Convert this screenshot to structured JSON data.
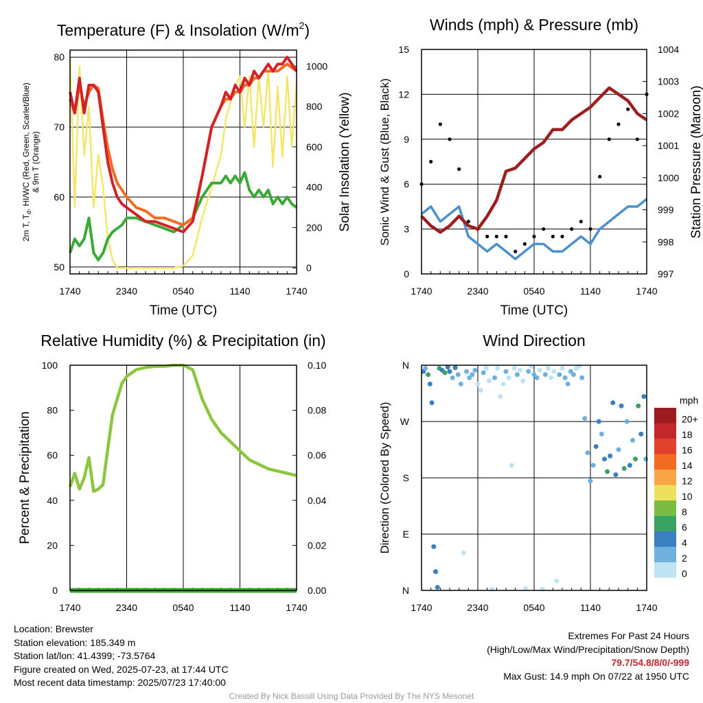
{
  "chart_data": [
    {
      "id": "temperature",
      "type": "line",
      "title": "Temperature (F) & Insolation (W/m²)",
      "title_main": "Temperature (F) & Insolation (W/m",
      "title_sup": "2",
      "title_end": ")",
      "xlabel": "Time (UTC)",
      "ylabel_lines": [
        "2m T, T",
        "d",
        ", HI/WC (Red, Green, Scarlet/Blue)",
        "& 9m T (Orange)"
      ],
      "ylabel_right": "Solar Insolation (Yellow)",
      "x_ticks": [
        "1740",
        "2340",
        "0540",
        "1140",
        "1740"
      ],
      "y_ticks": [
        50,
        60,
        70,
        80
      ],
      "ylim": [
        49,
        81
      ],
      "y2_ticks": [
        0,
        200,
        400,
        600,
        800,
        1000
      ],
      "y2lim": [
        -30,
        1080
      ],
      "x_hours_since_1740": [
        0,
        0.5,
        1,
        1.5,
        2,
        2.5,
        3,
        3.5,
        4,
        4.5,
        5,
        5.5,
        6,
        7,
        8,
        9,
        10,
        11,
        12,
        13,
        14,
        15,
        16,
        16.5,
        17,
        17.5,
        18,
        18.5,
        19,
        19.5,
        20,
        20.5,
        21,
        21.5,
        22,
        22.5,
        23,
        23.5,
        24
      ],
      "series": [
        {
          "name": "2m T",
          "color": "#d42027",
          "axis": "left",
          "values": [
            75,
            72,
            77,
            72,
            76,
            76,
            75,
            70,
            65,
            62,
            60,
            59,
            58.5,
            57.5,
            56.5,
            56.5,
            56,
            55.5,
            55,
            56.5,
            63,
            70,
            73,
            75,
            74,
            76,
            75,
            77,
            76,
            78,
            77,
            78,
            79,
            78,
            79,
            79,
            80,
            79,
            78
          ]
        },
        {
          "name": "9m T",
          "color": "#f26b21",
          "axis": "left",
          "values": [
            74,
            72,
            76,
            73,
            75,
            76,
            75.5,
            71,
            67,
            64,
            62,
            61,
            60,
            58.5,
            58,
            57,
            57,
            56.5,
            56,
            57,
            63,
            70,
            73,
            74,
            74,
            75,
            75,
            76,
            76,
            77,
            77,
            78,
            78,
            78,
            78,
            78.5,
            79,
            78.5,
            78
          ]
        },
        {
          "name": "Td",
          "color": "#3aaa35",
          "axis": "left",
          "values": [
            52,
            54,
            53,
            54,
            57,
            52,
            51,
            52,
            54,
            55,
            55.5,
            56,
            57,
            57,
            56.5,
            56,
            55.5,
            55,
            56,
            57,
            60,
            62,
            62,
            63,
            62,
            63,
            62,
            63.5,
            61,
            60,
            61,
            60,
            61,
            59,
            60,
            59,
            60,
            59,
            58.5
          ]
        },
        {
          "name": "Insolation",
          "color": "#f4e66b",
          "axis": "right",
          "values": [
            1040,
            300,
            1000,
            560,
            800,
            300,
            560,
            400,
            150,
            40,
            0,
            0,
            0,
            0,
            0,
            0,
            0,
            0,
            10,
            60,
            250,
            400,
            560,
            740,
            820,
            900,
            950,
            700,
            950,
            600,
            950,
            700,
            980,
            500,
            900,
            550,
            950,
            600,
            920
          ]
        }
      ]
    },
    {
      "id": "winds",
      "type": "line",
      "title": "Winds (mph) & Pressure (mb)",
      "xlabel": "Time (UTC)",
      "ylabel": "Sonic Wind & Gust (Blue, Black)",
      "ylabel_right": "Station Pressure (Maroon)",
      "x_ticks": [
        "1740",
        "2340",
        "0540",
        "1140",
        "1740"
      ],
      "y_ticks": [
        0,
        3,
        6,
        9,
        12,
        15
      ],
      "ylim": [
        0,
        15
      ],
      "y2_ticks": [
        997,
        998,
        999,
        1000,
        1001,
        1002,
        1003,
        1004
      ],
      "y2lim": [
        997,
        1004
      ],
      "x_hours_since_1740": [
        0,
        1,
        2,
        3,
        4,
        5,
        6,
        7,
        8,
        9,
        10,
        11,
        12,
        13,
        14,
        15,
        16,
        17,
        18,
        19,
        20,
        21,
        22,
        23,
        24
      ],
      "series": [
        {
          "name": "Sonic Wind",
          "color": "#4a90d0",
          "axis": "left",
          "values": [
            4,
            4.5,
            3.5,
            4,
            4.5,
            2.5,
            2,
            1.5,
            2,
            1.5,
            1,
            1.5,
            2,
            2,
            1.5,
            1.5,
            2,
            2.5,
            2,
            3,
            3.5,
            4,
            4.5,
            4.5,
            5
          ]
        },
        {
          "name": "Gust",
          "color": "#000000",
          "axis": "left",
          "style": "dots",
          "values": [
            6,
            7.5,
            10,
            9,
            7,
            3.5,
            3,
            2.5,
            2.5,
            2.5,
            1.5,
            2,
            2.5,
            3,
            2.5,
            2.5,
            3,
            3.5,
            3,
            6.5,
            9,
            10,
            11,
            9,
            12
          ]
        },
        {
          "name": "Station Pressure",
          "color": "#9c1e1e",
          "axis": "right",
          "values": [
            998.8,
            998.5,
            998.3,
            998.5,
            998.8,
            998.5,
            998.4,
            998.8,
            999.3,
            1000.2,
            1000.3,
            1000.6,
            1000.9,
            1001.1,
            1001.5,
            1001.5,
            1001.8,
            1002.0,
            1002.2,
            1002.5,
            1002.8,
            1002.6,
            1002.4,
            1002.0,
            1001.8
          ]
        }
      ]
    },
    {
      "id": "rh",
      "type": "line",
      "title": "Relative Humidity (%) & Precipitation (in)",
      "ylabel": "Percent & Precipitation",
      "x_ticks": [
        "1740",
        "2340",
        "0540",
        "1140",
        "1740"
      ],
      "y_ticks": [
        0,
        20,
        40,
        60,
        80,
        100
      ],
      "ylim": [
        0,
        100
      ],
      "y2_ticks": [
        "0.00",
        "0.02",
        "0.04",
        "0.06",
        "0.08",
        "0.10"
      ],
      "y2lim": [
        0,
        0.1
      ],
      "x_hours_since_1740": [
        0,
        0.5,
        1,
        1.5,
        2,
        2.5,
        3,
        3.5,
        4,
        4.5,
        5,
        5.5,
        6,
        7,
        8,
        9,
        10,
        11,
        12,
        13,
        14,
        15,
        16,
        17,
        18,
        19,
        20,
        21,
        22,
        23,
        24
      ],
      "series": [
        {
          "name": "Relative Humidity",
          "color": "#8cc63f",
          "axis": "left",
          "values": [
            46,
            52,
            45,
            50,
            59,
            44,
            45,
            47,
            63,
            78,
            85,
            92,
            95,
            98,
            99,
            99.5,
            99.5,
            100,
            100,
            98,
            85,
            76,
            70,
            66,
            62,
            58,
            56,
            54,
            53,
            52,
            51
          ]
        },
        {
          "name": "Precipitation",
          "color": "#3aaa35",
          "axis": "right",
          "values": [
            0,
            0,
            0,
            0,
            0,
            0,
            0,
            0,
            0,
            0,
            0,
            0,
            0,
            0,
            0,
            0,
            0,
            0,
            0,
            0,
            0,
            0,
            0,
            0,
            0,
            0,
            0,
            0,
            0,
            0,
            0
          ]
        }
      ]
    },
    {
      "id": "wind-direction",
      "type": "scatter",
      "title": "Wind Direction",
      "ylabel": "Direction (Colored By Speed)",
      "x_ticks": [
        "1740",
        "2340",
        "0540",
        "1140",
        "1740"
      ],
      "y_ticks": [
        "N",
        "E",
        "S",
        "W",
        "N"
      ],
      "ylim": [
        0,
        360
      ],
      "legend": {
        "unit": "mph",
        "labels": [
          "20+",
          "18",
          "16",
          "14",
          "12",
          "10",
          "8",
          "6",
          "4",
          "2",
          "0"
        ],
        "colors": [
          "#9b1b1e",
          "#c1272d",
          "#e0422d",
          "#f26b21",
          "#f7a545",
          "#ede05a",
          "#7bbd44",
          "#3aa362",
          "#3c7fc0",
          "#6fb0e0",
          "#bde3f5"
        ],
        "placement": "right"
      },
      "points": [
        {
          "h": 0.2,
          "dir": 350,
          "spd": 4
        },
        {
          "h": 0.4,
          "dir": 355,
          "spd": 3
        },
        {
          "h": 0.7,
          "dir": 345,
          "spd": 6
        },
        {
          "h": 0.9,
          "dir": 330,
          "spd": 4
        },
        {
          "h": 1.1,
          "dir": 300,
          "spd": 4
        },
        {
          "h": 1.3,
          "dir": 70,
          "spd": 4
        },
        {
          "h": 1.5,
          "dir": 30,
          "spd": 4
        },
        {
          "h": 1.7,
          "dir": 5,
          "spd": 4
        },
        {
          "h": 1.9,
          "dir": 355,
          "spd": 6
        },
        {
          "h": 2.2,
          "dir": 352,
          "spd": 4
        },
        {
          "h": 2.5,
          "dir": 348,
          "spd": 6
        },
        {
          "h": 2.8,
          "dir": 357,
          "spd": 5
        },
        {
          "h": 3.0,
          "dir": 350,
          "spd": 4
        },
        {
          "h": 3.3,
          "dir": 340,
          "spd": 3
        },
        {
          "h": 3.6,
          "dir": 356,
          "spd": 4
        },
        {
          "h": 3.9,
          "dir": 345,
          "spd": 2
        },
        {
          "h": 4.2,
          "dir": 330,
          "spd": 2
        },
        {
          "h": 4.5,
          "dir": 60,
          "spd": 1
        },
        {
          "h": 4.8,
          "dir": 350,
          "spd": 3
        },
        {
          "h": 5.1,
          "dir": 340,
          "spd": 3
        },
        {
          "h": 5.4,
          "dir": 345,
          "spd": 2
        },
        {
          "h": 5.7,
          "dir": 352,
          "spd": 2
        },
        {
          "h": 6.0,
          "dir": 330,
          "spd": 1
        },
        {
          "h": 6.3,
          "dir": 320,
          "spd": 1
        },
        {
          "h": 6.6,
          "dir": 348,
          "spd": 2
        },
        {
          "h": 6.9,
          "dir": 355,
          "spd": 1
        },
        {
          "h": 7.2,
          "dir": 335,
          "spd": 1
        },
        {
          "h": 7.5,
          "dir": 2,
          "spd": 1
        },
        {
          "h": 7.8,
          "dir": 340,
          "spd": 2
        },
        {
          "h": 8.1,
          "dir": 355,
          "spd": 1
        },
        {
          "h": 8.4,
          "dir": 310,
          "spd": 1
        },
        {
          "h": 8.7,
          "dir": 330,
          "spd": 1
        },
        {
          "h": 9.0,
          "dir": 350,
          "spd": 2
        },
        {
          "h": 9.3,
          "dir": 340,
          "spd": 1
        },
        {
          "h": 9.6,
          "dir": 200,
          "spd": 1
        },
        {
          "h": 9.9,
          "dir": 355,
          "spd": 1
        },
        {
          "h": 10.2,
          "dir": 345,
          "spd": 2
        },
        {
          "h": 10.5,
          "dir": 352,
          "spd": 1
        },
        {
          "h": 10.8,
          "dir": 335,
          "spd": 1
        },
        {
          "h": 11.1,
          "dir": 3,
          "spd": 1
        },
        {
          "h": 11.4,
          "dir": 350,
          "spd": 2
        },
        {
          "h": 11.7,
          "dir": 358,
          "spd": 1
        },
        {
          "h": 12.0,
          "dir": 345,
          "spd": 2
        },
        {
          "h": 12.3,
          "dir": 340,
          "spd": 2
        },
        {
          "h": 12.6,
          "dir": 352,
          "spd": 1
        },
        {
          "h": 12.9,
          "dir": 2,
          "spd": 1
        },
        {
          "h": 13.2,
          "dir": 345,
          "spd": 2
        },
        {
          "h": 13.5,
          "dir": 355,
          "spd": 1
        },
        {
          "h": 13.8,
          "dir": 340,
          "spd": 1
        },
        {
          "h": 14.1,
          "dir": 350,
          "spd": 1
        },
        {
          "h": 14.4,
          "dir": 15,
          "spd": 1
        },
        {
          "h": 14.7,
          "dir": 345,
          "spd": 2
        },
        {
          "h": 15.0,
          "dir": 355,
          "spd": 1
        },
        {
          "h": 15.3,
          "dir": 340,
          "spd": 2
        },
        {
          "h": 15.6,
          "dir": 330,
          "spd": 3
        },
        {
          "h": 15.9,
          "dir": 350,
          "spd": 2
        },
        {
          "h": 16.2,
          "dir": 345,
          "spd": 2
        },
        {
          "h": 16.5,
          "dir": 355,
          "spd": 1
        },
        {
          "h": 16.8,
          "dir": 358,
          "spd": 1
        },
        {
          "h": 17.1,
          "dir": 340,
          "spd": 2
        },
        {
          "h": 17.4,
          "dir": 275,
          "spd": 3
        },
        {
          "h": 17.7,
          "dir": 220,
          "spd": 3
        },
        {
          "h": 18.0,
          "dir": 175,
          "spd": 3
        },
        {
          "h": 18.3,
          "dir": 200,
          "spd": 3
        },
        {
          "h": 18.6,
          "dir": 230,
          "spd": 4
        },
        {
          "h": 18.9,
          "dir": 270,
          "spd": 4
        },
        {
          "h": 19.2,
          "dir": 250,
          "spd": 3
        },
        {
          "h": 19.5,
          "dir": 210,
          "spd": 4
        },
        {
          "h": 19.8,
          "dir": 190,
          "spd": 6
        },
        {
          "h": 20.1,
          "dir": 215,
          "spd": 4
        },
        {
          "h": 20.4,
          "dir": 300,
          "spd": 4
        },
        {
          "h": 20.7,
          "dir": 185,
          "spd": 5
        },
        {
          "h": 21.0,
          "dir": 225,
          "spd": 3
        },
        {
          "h": 21.3,
          "dir": 295,
          "spd": 4
        },
        {
          "h": 21.6,
          "dir": 195,
          "spd": 6
        },
        {
          "h": 21.9,
          "dir": 270,
          "spd": 3
        },
        {
          "h": 22.2,
          "dir": 200,
          "spd": 4
        },
        {
          "h": 22.5,
          "dir": 240,
          "spd": 3
        },
        {
          "h": 22.8,
          "dir": 210,
          "spd": 7
        },
        {
          "h": 23.1,
          "dir": 295,
          "spd": 6
        },
        {
          "h": 23.4,
          "dir": 250,
          "spd": 4
        },
        {
          "h": 23.7,
          "dir": 310,
          "spd": 5
        },
        {
          "h": 23.9,
          "dir": 210,
          "spd": 3
        }
      ]
    }
  ],
  "info_left": [
    "Location: Brewster",
    "Station elevation: 185.349 m",
    "Station lat/lon: 41.4399; -73.5764",
    "Figure created on Wed, 2025-07-23, at 17:44 UTC",
    "Most recent data timestamp: 2025/07/23 17:40:00"
  ],
  "extremes": {
    "heading": "Extremes For Past 24 Hours",
    "subheading": "(High/Low/Max Wind/Precipitation/Snow Depth)",
    "values": "79.7/54.8/8/0/-999",
    "max_gust": "Max Gust: 14.9 mph On 07/22 at 1950 UTC",
    "highlight_color": "#c1272d"
  },
  "footer": "Created By Nick Bassill Using Data Provided By The NYS Mesonet"
}
